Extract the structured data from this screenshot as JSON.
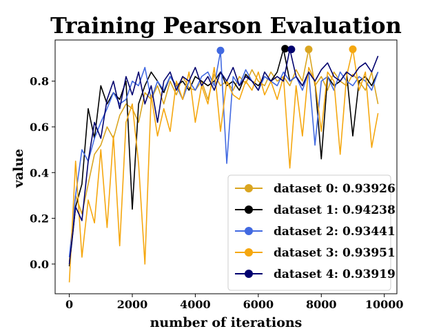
{
  "chart_data": {
    "type": "line",
    "title": "Training Pearson Evaluation",
    "xlabel": "number of iterations",
    "ylabel": "value",
    "xlim": [
      -450,
      10400
    ],
    "ylim": [
      -0.13,
      0.98
    ],
    "xticks": [
      0,
      2000,
      4000,
      6000,
      8000,
      10000
    ],
    "yticks": [
      0.0,
      0.2,
      0.4,
      0.6,
      0.8
    ],
    "xtick_labels": [
      "0",
      "2000",
      "4000",
      "6000",
      "8000",
      "10000"
    ],
    "ytick_labels": [
      "0.0",
      "0.2",
      "0.4",
      "0.6",
      "0.8"
    ],
    "grid": false,
    "legend_position": "lower-right",
    "series": [
      {
        "name": "dataset 0: 0.93926",
        "color": "#DAA520",
        "peak": {
          "x": 7600,
          "y": 0.939
        },
        "x": [
          0,
          200,
          400,
          600,
          800,
          1000,
          1200,
          1400,
          1600,
          1800,
          2000,
          2200,
          2400,
          2600,
          2800,
          3000,
          3200,
          3400,
          3600,
          3800,
          4000,
          4200,
          4400,
          4600,
          4800,
          5000,
          5200,
          5400,
          5600,
          5800,
          6000,
          6200,
          6400,
          6600,
          6800,
          7000,
          7200,
          7400,
          7600,
          7800,
          8000,
          8200,
          8400,
          8600,
          8800,
          9000,
          9200,
          9400,
          9600,
          9800
        ],
        "values": [
          0.01,
          0.3,
          0.22,
          0.35,
          0.48,
          0.52,
          0.6,
          0.55,
          0.65,
          0.7,
          0.68,
          0.62,
          0.75,
          0.72,
          0.78,
          0.7,
          0.8,
          0.74,
          0.82,
          0.77,
          0.76,
          0.8,
          0.72,
          0.83,
          0.78,
          0.8,
          0.76,
          0.82,
          0.79,
          0.85,
          0.8,
          0.78,
          0.84,
          0.8,
          0.82,
          0.78,
          0.85,
          0.8,
          0.94,
          0.78,
          0.82,
          0.76,
          0.84,
          0.8,
          0.78,
          0.83,
          0.8,
          0.76,
          0.84,
          0.7
        ]
      },
      {
        "name": "dataset 1: 0.94238",
        "color": "#000000",
        "peak": {
          "x": 6850,
          "y": 0.942
        },
        "x": [
          0,
          200,
          400,
          600,
          800,
          1000,
          1200,
          1400,
          1600,
          1800,
          2000,
          2200,
          2400,
          2600,
          2800,
          3000,
          3200,
          3400,
          3600,
          3800,
          4000,
          4200,
          4400,
          4600,
          4800,
          5000,
          5200,
          5400,
          5600,
          5800,
          6000,
          6200,
          6400,
          6600,
          6800,
          7000,
          7200,
          7400,
          7600,
          7800,
          8000,
          8200,
          8400,
          8600,
          8800,
          9000,
          9200,
          9400,
          9600,
          9800
        ],
        "values": [
          -0.01,
          0.25,
          0.35,
          0.68,
          0.55,
          0.78,
          0.7,
          0.75,
          0.72,
          0.8,
          0.24,
          0.7,
          0.78,
          0.84,
          0.8,
          0.75,
          0.82,
          0.78,
          0.8,
          0.76,
          0.82,
          0.8,
          0.78,
          0.8,
          0.84,
          0.78,
          0.8,
          0.76,
          0.83,
          0.8,
          0.78,
          0.82,
          0.8,
          0.84,
          0.94,
          0.8,
          0.82,
          0.78,
          0.84,
          0.8,
          0.46,
          0.82,
          0.78,
          0.8,
          0.84,
          0.56,
          0.8,
          0.82,
          0.78,
          0.84
        ]
      },
      {
        "name": "dataset 2: 0.93441",
        "color": "#4169E1",
        "peak": {
          "x": 4800,
          "y": 0.934
        },
        "x": [
          0,
          200,
          400,
          600,
          800,
          1000,
          1200,
          1400,
          1600,
          1800,
          2000,
          2200,
          2400,
          2600,
          2800,
          3000,
          3200,
          3400,
          3600,
          3800,
          4000,
          4200,
          4400,
          4600,
          4800,
          5000,
          5200,
          5400,
          5600,
          5800,
          6000,
          6200,
          6400,
          6600,
          6800,
          7000,
          7200,
          7400,
          7600,
          7800,
          8000,
          8200,
          8400,
          8600,
          8800,
          9000,
          9200,
          9400,
          9600,
          9800
        ],
        "values": [
          0.03,
          0.3,
          0.5,
          0.45,
          0.55,
          0.62,
          0.68,
          0.75,
          0.7,
          0.72,
          0.8,
          0.78,
          0.86,
          0.72,
          0.8,
          0.76,
          0.82,
          0.78,
          0.72,
          0.8,
          0.76,
          0.82,
          0.84,
          0.78,
          0.93,
          0.44,
          0.82,
          0.78,
          0.85,
          0.8,
          0.76,
          0.82,
          0.8,
          0.78,
          0.84,
          0.8,
          0.82,
          0.76,
          0.84,
          0.52,
          0.8,
          0.82,
          0.76,
          0.84,
          0.8,
          0.78,
          0.82,
          0.8,
          0.76,
          0.84
        ]
      },
      {
        "name": "dataset 3: 0.93951",
        "color": "#F5A70F",
        "peak": {
          "x": 9000,
          "y": 0.9395
        },
        "x": [
          0,
          200,
          400,
          600,
          800,
          1000,
          1200,
          1400,
          1600,
          1800,
          2000,
          2200,
          2400,
          2600,
          2800,
          3000,
          3200,
          3400,
          3600,
          3800,
          4000,
          4200,
          4400,
          4600,
          4800,
          5000,
          5200,
          5400,
          5600,
          5800,
          6000,
          6200,
          6400,
          6600,
          6800,
          7000,
          7200,
          7400,
          7600,
          7800,
          8000,
          8200,
          8400,
          8600,
          8800,
          9000,
          9200,
          9400,
          9600,
          9800
        ],
        "values": [
          -0.08,
          0.45,
          0.03,
          0.28,
          0.18,
          0.5,
          0.16,
          0.56,
          0.08,
          0.62,
          0.7,
          0.44,
          0.0,
          0.74,
          0.56,
          0.68,
          0.58,
          0.8,
          0.72,
          0.84,
          0.62,
          0.78,
          0.7,
          0.86,
          0.58,
          0.8,
          0.74,
          0.72,
          0.8,
          0.76,
          0.84,
          0.74,
          0.8,
          0.72,
          0.82,
          0.42,
          0.78,
          0.56,
          0.86,
          0.8,
          0.58,
          0.84,
          0.8,
          0.48,
          0.82,
          0.94,
          0.76,
          0.84,
          0.51,
          0.66
        ]
      },
      {
        "name": "dataset 4: 0.93919",
        "color": "#00006E",
        "peak": {
          "x": 7050,
          "y": 0.939
        },
        "x": [
          0,
          200,
          400,
          600,
          800,
          1000,
          1200,
          1400,
          1600,
          1800,
          2000,
          2200,
          2400,
          2600,
          2800,
          3000,
          3200,
          3400,
          3600,
          3800,
          4000,
          4200,
          4400,
          4600,
          4800,
          5000,
          5200,
          5400,
          5600,
          5800,
          6000,
          6200,
          6400,
          6600,
          6800,
          7000,
          7200,
          7400,
          7600,
          7800,
          8000,
          8200,
          8400,
          8600,
          8800,
          9000,
          9200,
          9400,
          9600,
          9800
        ],
        "values": [
          0.0,
          0.25,
          0.19,
          0.45,
          0.62,
          0.55,
          0.72,
          0.8,
          0.68,
          0.82,
          0.74,
          0.84,
          0.7,
          0.78,
          0.62,
          0.8,
          0.84,
          0.76,
          0.82,
          0.8,
          0.86,
          0.78,
          0.82,
          0.76,
          0.84,
          0.8,
          0.86,
          0.78,
          0.82,
          0.8,
          0.76,
          0.84,
          0.8,
          0.82,
          0.8,
          0.94,
          0.82,
          0.78,
          0.84,
          0.8,
          0.85,
          0.88,
          0.82,
          0.8,
          0.84,
          0.82,
          0.86,
          0.88,
          0.84,
          0.91
        ]
      }
    ]
  }
}
